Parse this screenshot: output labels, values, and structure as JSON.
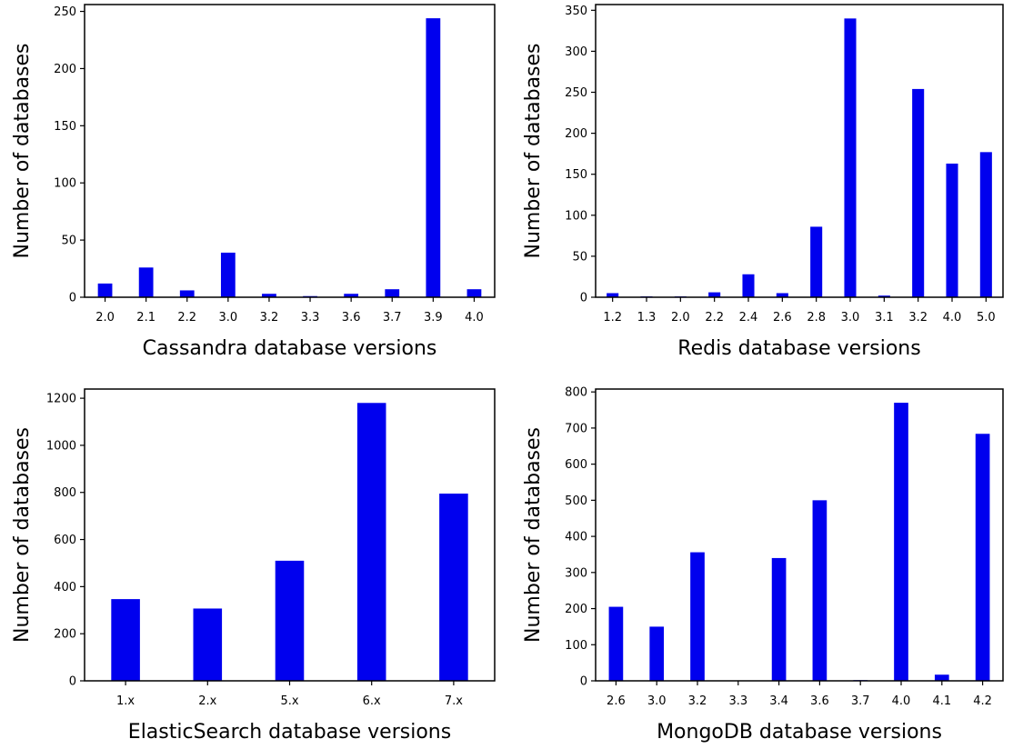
{
  "chart_data": [
    {
      "type": "bar",
      "xlabel": "Cassandra database versions",
      "ylabel": "Number of databases",
      "categories": [
        "2.0",
        "2.1",
        "2.2",
        "3.0",
        "3.2",
        "3.3",
        "3.6",
        "3.7",
        "3.9",
        "4.0"
      ],
      "values": [
        12,
        26,
        6,
        39,
        3,
        1,
        3,
        7,
        244,
        7
      ],
      "ylim": [
        0,
        256
      ],
      "yticks": [
        0,
        50,
        100,
        150,
        200,
        250
      ],
      "bar_color": "#0000ee",
      "grid": false
    },
    {
      "type": "bar",
      "xlabel": "Redis database versions",
      "ylabel": "Number of databases",
      "categories": [
        "1.2",
        "1.3",
        "2.0",
        "2.2",
        "2.4",
        "2.6",
        "2.8",
        "3.0",
        "3.1",
        "3.2",
        "4.0",
        "5.0"
      ],
      "values": [
        5,
        1,
        1,
        6,
        28,
        5,
        86,
        340,
        2,
        254,
        163,
        177
      ],
      "ylim": [
        0,
        357
      ],
      "yticks": [
        0,
        50,
        100,
        150,
        200,
        250,
        300,
        350
      ],
      "bar_color": "#0000ee",
      "grid": false
    },
    {
      "type": "bar",
      "xlabel": "ElasticSearch database versions",
      "ylabel": "Number of databases",
      "categories": [
        "1.x",
        "2.x",
        "5.x",
        "6.x",
        "7.x"
      ],
      "values": [
        347,
        307,
        510,
        1180,
        795
      ],
      "ylim": [
        0,
        1239
      ],
      "yticks": [
        0,
        200,
        400,
        600,
        800,
        1000,
        1200
      ],
      "bar_color": "#0000ee",
      "grid": false
    },
    {
      "type": "bar",
      "xlabel": "MongoDB database versions",
      "ylabel": "Number of databases",
      "categories": [
        "2.6",
        "3.0",
        "3.2",
        "3.3",
        "3.4",
        "3.6",
        "3.7",
        "4.0",
        "4.1",
        "4.2"
      ],
      "values": [
        205,
        150,
        356,
        1,
        340,
        500,
        2,
        770,
        17,
        684
      ],
      "ylim": [
        0,
        808
      ],
      "yticks": [
        0,
        100,
        200,
        300,
        400,
        500,
        600,
        700,
        800
      ],
      "bar_color": "#0000ee",
      "grid": false
    }
  ]
}
